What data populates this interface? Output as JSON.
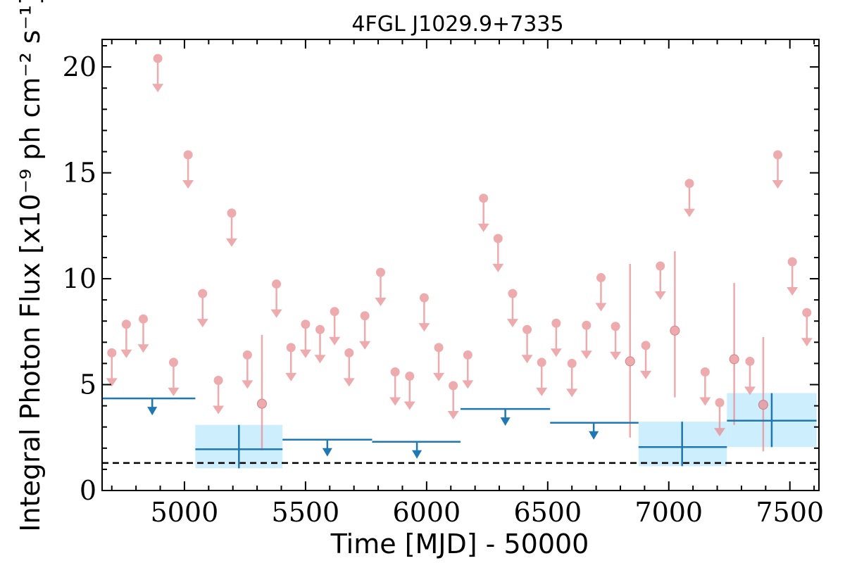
{
  "chart_data": {
    "type": "scatter",
    "title": "4FGL J1029.9+7335",
    "xlabel": "Time [MJD] - 50000",
    "ylabel": "Integral Photon Flux [x10⁻⁹ ph cm⁻² s⁻¹]",
    "xlim": [
      4660,
      7620
    ],
    "ylim": [
      0,
      21.3
    ],
    "x_ticks": [
      5000,
      5500,
      6000,
      6500,
      7000,
      7500
    ],
    "y_ticks": [
      0,
      5,
      10,
      15,
      20
    ],
    "reference_line": {
      "y": 1.3,
      "style": "dashed",
      "color": "#000000"
    },
    "colors": {
      "fine": "#e88f93",
      "coarse": "#1f77b4",
      "band": "#cdeefd"
    },
    "series": [
      {
        "role": "fine-bin-upper-limits",
        "points": [
          {
            "x": 4700,
            "y": 6.5
          },
          {
            "x": 4760,
            "y": 7.85
          },
          {
            "x": 4830,
            "y": 8.1
          },
          {
            "x": 4890,
            "y": 20.4
          },
          {
            "x": 4955,
            "y": 6.05
          },
          {
            "x": 5015,
            "y": 15.85
          },
          {
            "x": 5075,
            "y": 9.3
          },
          {
            "x": 5140,
            "y": 5.2
          },
          {
            "x": 5195,
            "y": 13.1
          },
          {
            "x": 5260,
            "y": 6.4
          },
          {
            "x": 5380,
            "y": 9.75
          },
          {
            "x": 5440,
            "y": 6.75
          },
          {
            "x": 5500,
            "y": 7.85
          },
          {
            "x": 5560,
            "y": 7.6
          },
          {
            "x": 5620,
            "y": 8.45
          },
          {
            "x": 5680,
            "y": 6.5
          },
          {
            "x": 5745,
            "y": 8.25
          },
          {
            "x": 5810,
            "y": 10.3
          },
          {
            "x": 5870,
            "y": 5.6
          },
          {
            "x": 5930,
            "y": 5.4
          },
          {
            "x": 5990,
            "y": 9.1
          },
          {
            "x": 6050,
            "y": 6.75
          },
          {
            "x": 6110,
            "y": 4.95
          },
          {
            "x": 6170,
            "y": 6.4
          },
          {
            "x": 6235,
            "y": 13.8
          },
          {
            "x": 6295,
            "y": 11.9
          },
          {
            "x": 6355,
            "y": 9.3
          },
          {
            "x": 6415,
            "y": 7.6
          },
          {
            "x": 6475,
            "y": 6.05
          },
          {
            "x": 6535,
            "y": 7.9
          },
          {
            "x": 6600,
            "y": 6.0
          },
          {
            "x": 6660,
            "y": 7.8
          },
          {
            "x": 6720,
            "y": 10.05
          },
          {
            "x": 6780,
            "y": 7.75
          },
          {
            "x": 6905,
            "y": 6.85
          },
          {
            "x": 6965,
            "y": 10.6
          },
          {
            "x": 7085,
            "y": 14.5
          },
          {
            "x": 7150,
            "y": 5.6
          },
          {
            "x": 7210,
            "y": 4.15
          },
          {
            "x": 7335,
            "y": 6.1
          },
          {
            "x": 7450,
            "y": 15.85
          },
          {
            "x": 7510,
            "y": 10.8
          },
          {
            "x": 7570,
            "y": 8.4
          }
        ]
      },
      {
        "role": "fine-bin-detections",
        "points": [
          {
            "x": 5320,
            "y": 4.1,
            "ylow": 1.9,
            "yhigh": 7.35
          },
          {
            "x": 6840,
            "y": 6.1,
            "ylow": 2.5,
            "yhigh": 10.7
          },
          {
            "x": 7025,
            "y": 7.55,
            "ylow": 4.4,
            "yhigh": 11.3
          },
          {
            "x": 7270,
            "y": 6.2,
            "ylow": 3.1,
            "yhigh": 9.8
          },
          {
            "x": 7390,
            "y": 4.05,
            "ylow": 1.85,
            "yhigh": 7.25
          }
        ]
      },
      {
        "role": "coarse-bin-upper-limits",
        "points": [
          {
            "x": 4867,
            "x0": 4660,
            "x1": 5045,
            "y": 4.35
          },
          {
            "x": 5590,
            "x0": 5405,
            "x1": 5775,
            "y": 2.4
          },
          {
            "x": 5960,
            "x0": 5775,
            "x1": 6140,
            "y": 2.3
          },
          {
            "x": 6325,
            "x0": 6140,
            "x1": 6510,
            "y": 3.85
          },
          {
            "x": 6690,
            "x0": 6510,
            "x1": 6875,
            "y": 3.2
          }
        ]
      },
      {
        "role": "coarse-bin-detections",
        "points": [
          {
            "x": 5225,
            "x0": 5045,
            "x1": 5405,
            "y": 1.95,
            "ylow": 1.05,
            "yhigh": 3.1
          },
          {
            "x": 7055,
            "x0": 6875,
            "x1": 7240,
            "y": 2.05,
            "ylow": 1.15,
            "yhigh": 3.25
          },
          {
            "x": 7425,
            "x0": 7240,
            "x1": 7610,
            "y": 3.3,
            "ylow": 2.05,
            "yhigh": 4.6
          }
        ]
      }
    ]
  }
}
